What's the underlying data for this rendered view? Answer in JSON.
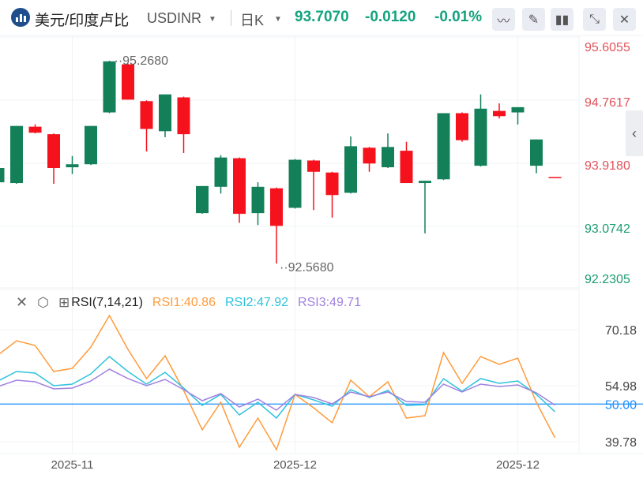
{
  "header": {
    "pair_name": "美元/印度卢比",
    "symbol": "USDINR",
    "period": "日K",
    "price": "93.7070",
    "change": "-0.0120",
    "change_pct": "-0.01%"
  },
  "toolbar": {
    "indicator": "indicator-icon",
    "draw": "pencil-icon",
    "candle": "candlestick-icon",
    "shrink": "shrink-icon",
    "close": "close-icon"
  },
  "rsi_header": {
    "title": "RSI(7,14,21)",
    "rsi1": "RSI1:40.86",
    "rsi2": "RSI2:47.92",
    "rsi3": "RSI3:49.71"
  },
  "colors": {
    "up": "#14805a",
    "down": "#f5121d",
    "rsi1": "#ff9b3b",
    "rsi2": "#2ec2dc",
    "rsi3": "#a182e0",
    "ref": "#1e90ff"
  },
  "chart_data": [
    {
      "type": "candlestick",
      "title": "USDINR 日K",
      "ylim": [
        92.2305,
        95.6055
      ],
      "y_ticks": [
        "95.6055",
        "94.7617",
        "93.9180",
        "93.0742",
        "92.2305"
      ],
      "annotations": {
        "high": "95.2680",
        "low": "92.5680"
      },
      "x_tick_labels": [
        {
          "index": 4,
          "label": "2025-11"
        },
        {
          "index": 16,
          "label": "2025-12"
        },
        {
          "index": 28,
          "label": "2025-12"
        }
      ],
      "candles": [
        [
          93.65,
          93.85,
          93.64,
          93.84
        ],
        [
          93.64,
          94.4,
          93.63,
          94.4
        ],
        [
          94.39,
          94.42,
          94.3,
          94.31
        ],
        [
          94.29,
          94.3,
          93.63,
          93.84
        ],
        [
          93.85,
          94.0,
          93.76,
          93.89
        ],
        [
          93.89,
          94.4,
          93.88,
          94.4
        ],
        [
          94.58,
          95.268,
          94.57,
          95.26
        ],
        [
          95.22,
          95.23,
          94.75,
          94.75
        ],
        [
          94.73,
          94.74,
          94.06,
          94.36
        ],
        [
          94.33,
          94.82,
          94.25,
          94.82
        ],
        [
          94.78,
          94.79,
          94.04,
          94.29
        ],
        [
          93.24,
          93.6,
          93.23,
          93.6
        ],
        [
          93.59,
          94.01,
          93.5,
          93.98
        ],
        [
          93.97,
          93.98,
          93.11,
          93.23
        ],
        [
          93.24,
          93.65,
          93.08,
          93.59
        ],
        [
          93.57,
          93.58,
          92.568,
          93.07
        ],
        [
          93.31,
          93.96,
          93.3,
          93.95
        ],
        [
          93.94,
          93.95,
          93.28,
          93.79
        ],
        [
          93.78,
          93.79,
          93.18,
          93.48
        ],
        [
          93.51,
          94.26,
          93.5,
          94.13
        ],
        [
          94.11,
          94.12,
          93.79,
          93.9
        ],
        [
          93.85,
          94.3,
          93.84,
          94.12
        ],
        [
          94.07,
          94.19,
          93.64,
          93.64
        ],
        [
          93.64,
          93.67,
          92.97,
          93.67
        ],
        [
          93.69,
          94.57,
          93.68,
          94.57
        ],
        [
          94.57,
          94.58,
          94.19,
          94.21
        ],
        [
          93.87,
          94.82,
          93.86,
          94.63
        ],
        [
          94.6,
          94.7,
          94.5,
          94.53
        ],
        [
          94.58,
          94.65,
          94.42,
          94.65
        ],
        [
          93.87,
          94.22,
          93.77,
          94.22
        ],
        [
          93.72,
          93.72,
          93.707,
          93.707
        ]
      ]
    },
    {
      "type": "line",
      "title": "RSI(7,14,21)",
      "ylim": [
        39.78,
        70.18
      ],
      "y_ticks": [
        "70.18",
        "54.98",
        "50.00",
        "39.78"
      ],
      "reference": 50,
      "series": [
        {
          "name": "RSI1",
          "values": [
            63.33,
            67.18,
            65.9,
            58.83,
            59.69,
            65.47,
            74.03,
            64.83,
            56.91,
            63.11,
            53.69,
            42.99,
            50.48,
            38.28,
            46.2,
            37.64,
            52.62,
            48.98,
            44.92,
            56.48,
            51.98,
            56.05,
            46.2,
            46.84,
            63.97,
            55.62,
            62.9,
            60.76,
            62.47,
            50.48,
            40.86
          ]
        },
        {
          "name": "RSI2",
          "values": [
            56.26,
            58.83,
            58.4,
            54.98,
            55.41,
            58.19,
            62.9,
            58.83,
            55.41,
            58.62,
            54.34,
            49.63,
            52.62,
            47.06,
            50.48,
            46.2,
            52.62,
            51.12,
            49.41,
            53.91,
            51.77,
            53.69,
            49.63,
            49.84,
            56.91,
            53.48,
            56.91,
            55.62,
            56.26,
            52.62,
            47.92
          ]
        },
        {
          "name": "RSI3",
          "values": [
            54.76,
            56.48,
            56.05,
            54.12,
            54.34,
            56.26,
            59.47,
            56.91,
            54.98,
            56.69,
            53.91,
            50.91,
            52.84,
            49.2,
            51.34,
            48.34,
            52.62,
            51.77,
            50.05,
            53.27,
            51.98,
            53.27,
            50.7,
            50.48,
            55.41,
            53.27,
            55.41,
            54.76,
            55.19,
            53.05,
            49.71
          ]
        }
      ]
    }
  ]
}
